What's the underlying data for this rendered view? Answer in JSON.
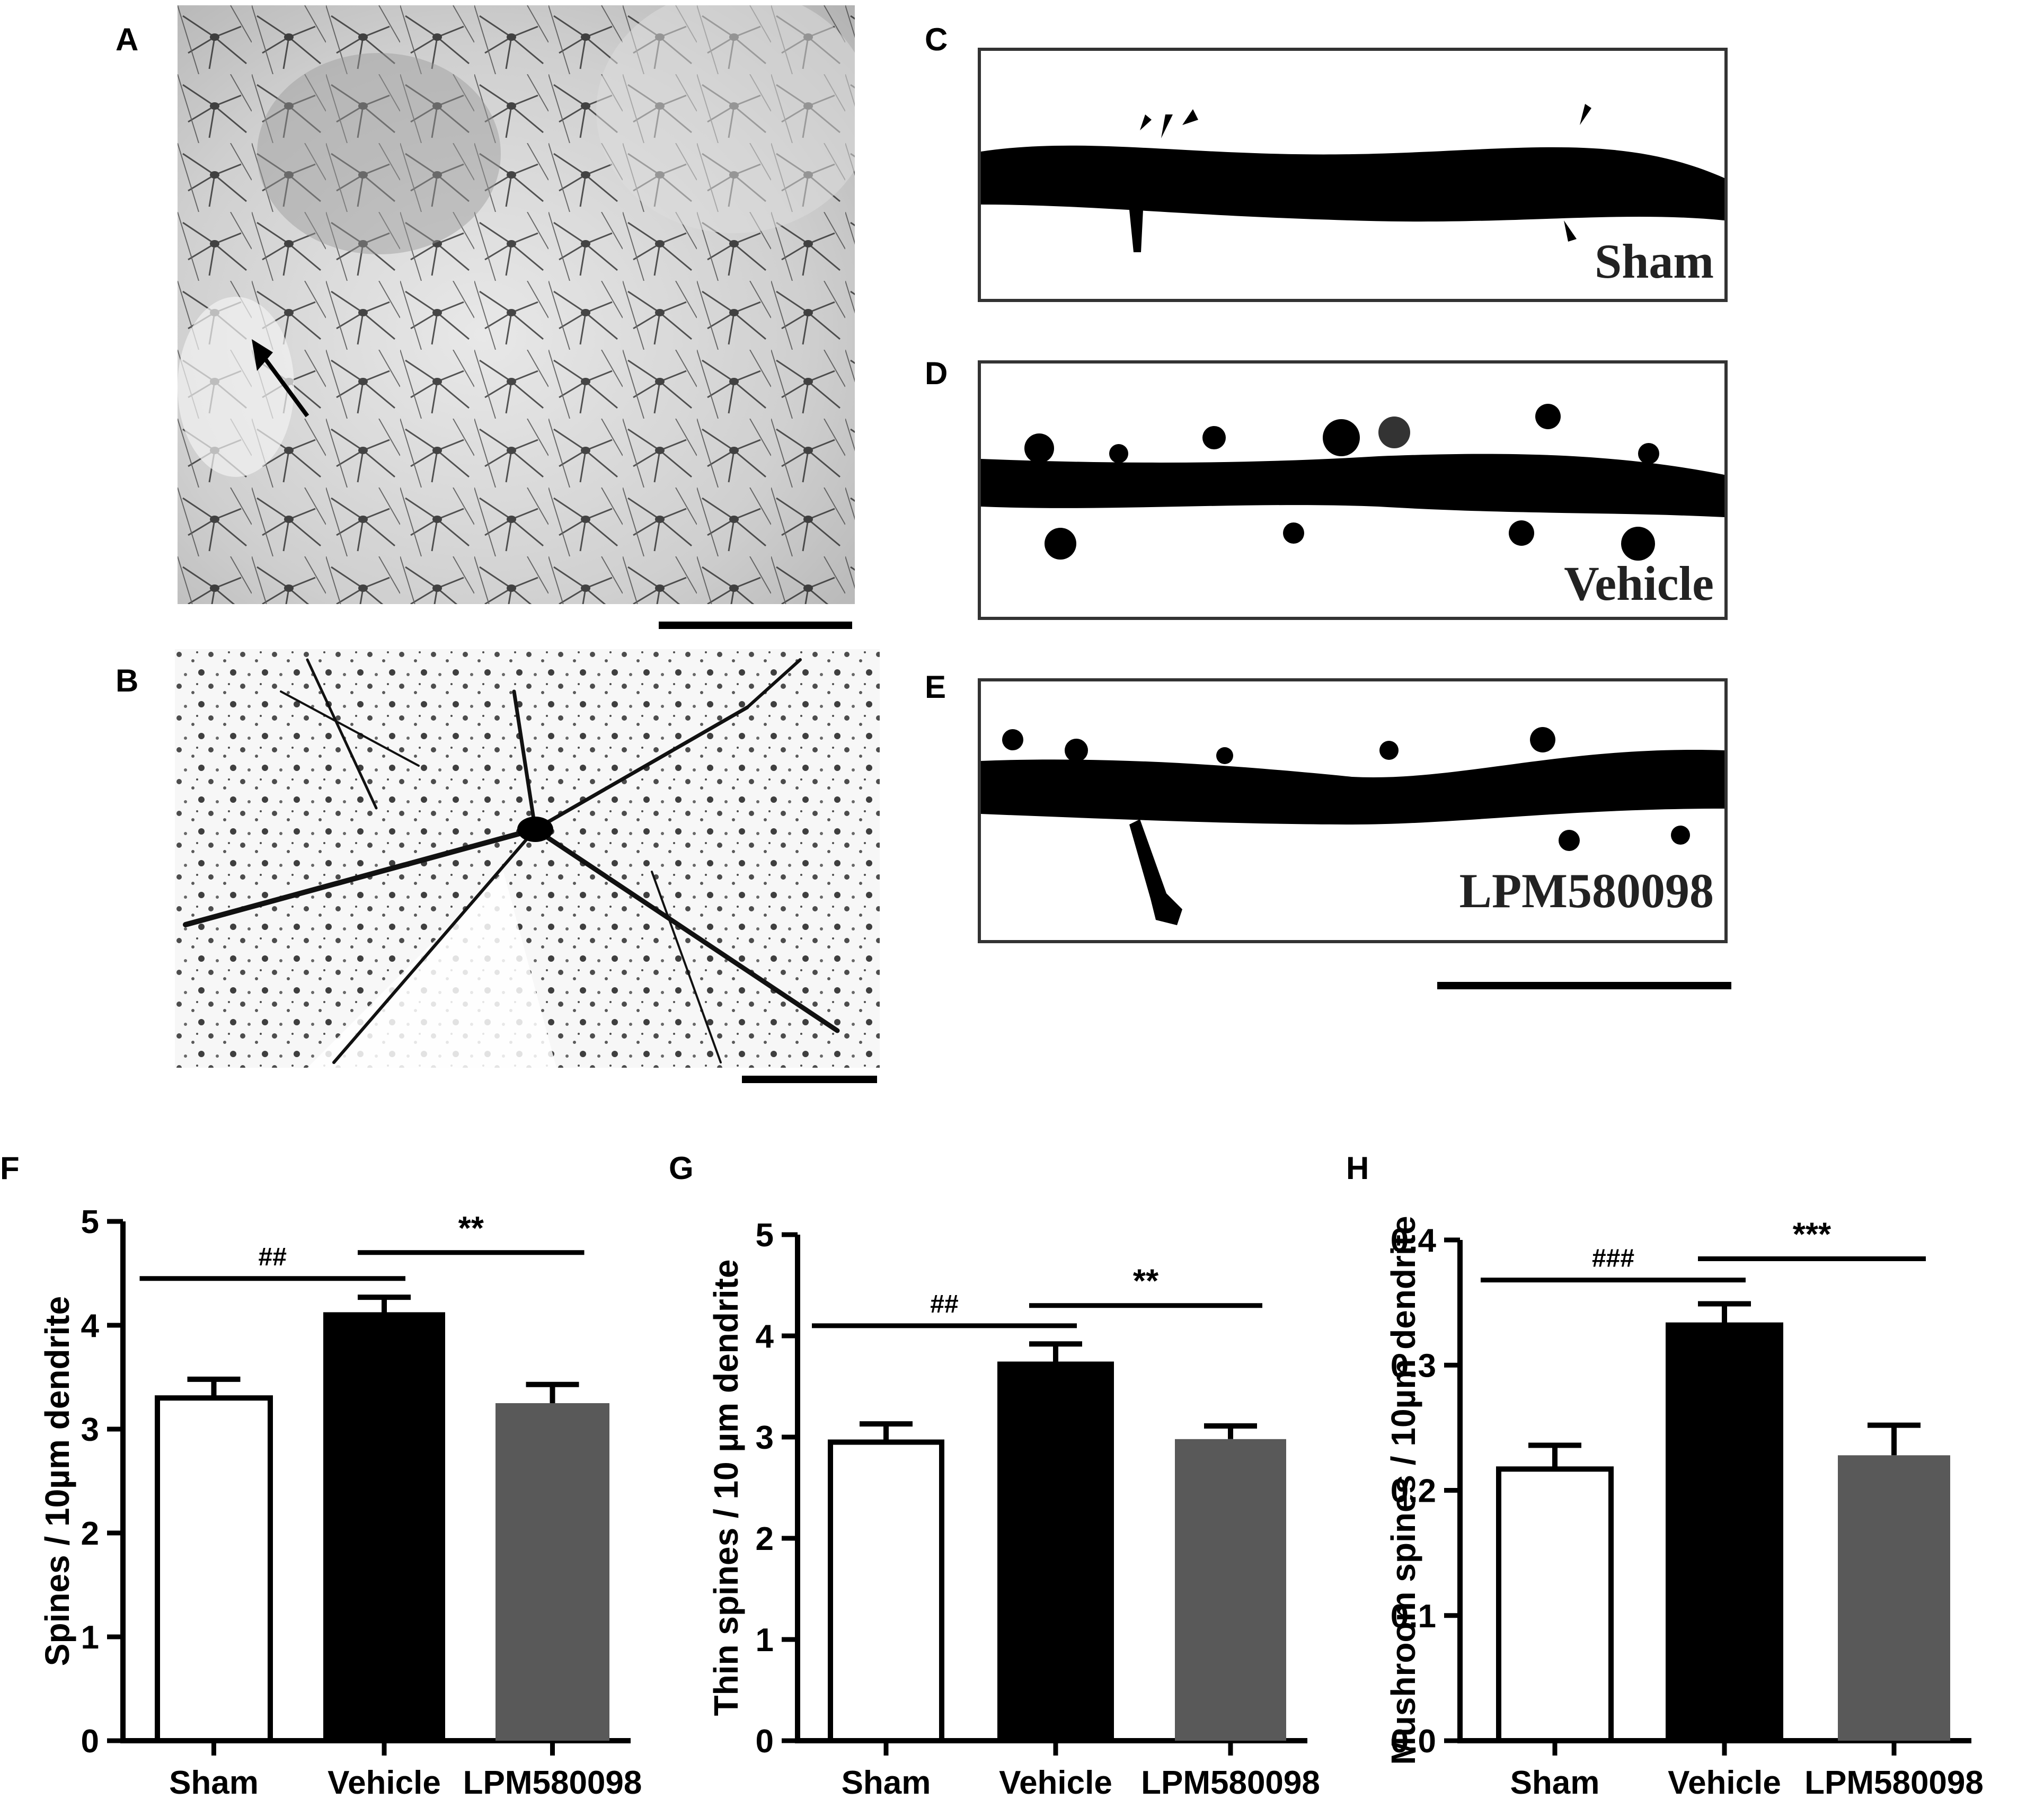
{
  "panels": {
    "A": "A",
    "B": "B",
    "C": "C",
    "D": "D",
    "E": "E",
    "F": "F",
    "G": "G",
    "H": "H"
  },
  "dendrite_labels": {
    "C": "Sham",
    "D": "Vehicle",
    "E": "LPM580098"
  },
  "colors": {
    "sham": "#ffffff",
    "vehicle": "#000000",
    "lpm": "#595959"
  },
  "chart_data": [
    {
      "panel": "F",
      "type": "bar",
      "categories": [
        "Sham",
        "Vehicle",
        "LPM580098"
      ],
      "values": [
        3.3,
        4.1,
        3.25
      ],
      "errors": [
        0.18,
        0.17,
        0.18
      ],
      "ylabel": "Spines / 10µm dendrite",
      "ylim": [
        0,
        5
      ],
      "yticks": [
        "0",
        "1",
        "2",
        "3",
        "4",
        "5"
      ],
      "tickvals": [
        0,
        1,
        2,
        3,
        4,
        5
      ],
      "significance": [
        {
          "from": 0,
          "to": 1,
          "label": "##",
          "level": 4.45
        },
        {
          "from": 1,
          "to": 2,
          "label": "**",
          "level": 4.7
        }
      ]
    },
    {
      "panel": "G",
      "type": "bar",
      "categories": [
        "Sham",
        "Vehicle",
        "LPM580098"
      ],
      "values": [
        2.95,
        3.72,
        2.98
      ],
      "errors": [
        0.18,
        0.2,
        0.13
      ],
      "ylabel": "Thin spines / 10 µm dendrite",
      "ylim": [
        0,
        5
      ],
      "yticks": [
        "0",
        "1",
        "2",
        "3",
        "4",
        "5"
      ],
      "tickvals": [
        0,
        1,
        2,
        3,
        4,
        5
      ],
      "significance": [
        {
          "from": 0,
          "to": 1,
          "label": "##",
          "level": 4.1
        },
        {
          "from": 1,
          "to": 2,
          "label": "**",
          "level": 4.3
        }
      ]
    },
    {
      "panel": "H",
      "type": "bar",
      "categories": [
        "Sham",
        "Vehicle",
        "LPM580098"
      ],
      "values": [
        0.217,
        0.332,
        0.228
      ],
      "errors": [
        0.019,
        0.017,
        0.024
      ],
      "ylabel": "Mushroom spines / 10µm dendrite",
      "ylim": [
        0,
        0.4
      ],
      "yticks": [
        "0.0",
        "0.1",
        "0.2",
        "0.3",
        "0.4"
      ],
      "tickvals": [
        0,
        0.1,
        0.2,
        0.3,
        0.4
      ],
      "significance": [
        {
          "from": 0,
          "to": 1,
          "label": "###",
          "level": 0.368
        },
        {
          "from": 1,
          "to": 2,
          "label": "***",
          "level": 0.385
        }
      ]
    }
  ]
}
